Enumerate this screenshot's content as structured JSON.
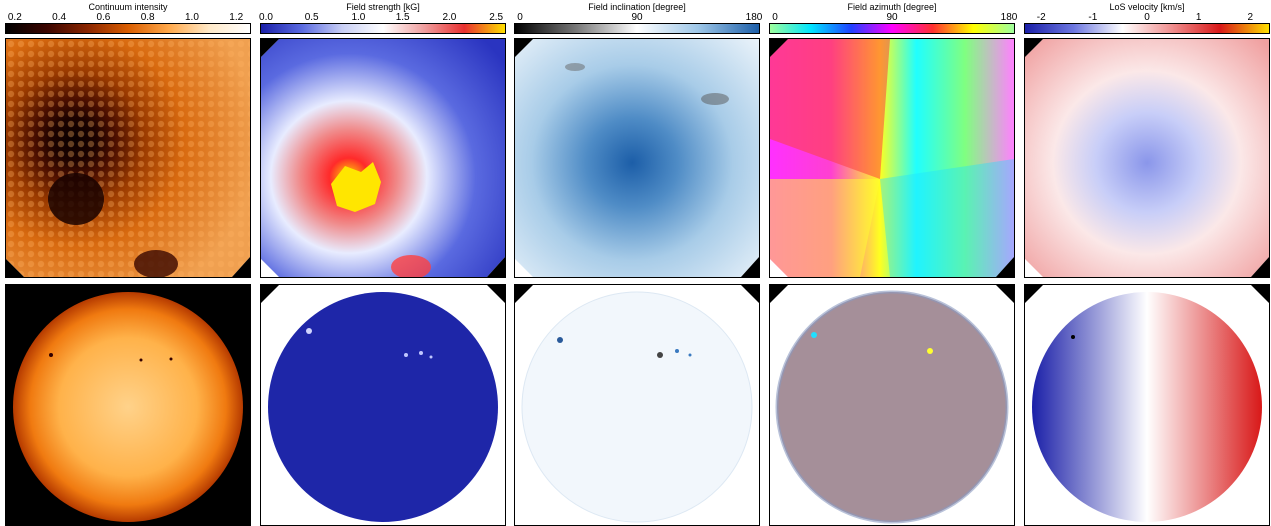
{
  "panels": [
    {
      "title": "Continuum intensity",
      "ticks": [
        "0.2",
        "0.4",
        "0.6",
        "0.8",
        "1.0",
        "1.2"
      ],
      "tick_pos": [
        0.04,
        0.22,
        0.4,
        0.58,
        0.76,
        0.94
      ],
      "colormap": [
        "#000000",
        "#3b0500",
        "#8a2500",
        "#d95d00",
        "#ffa84a",
        "#ffe9c8",
        "#ffffff"
      ],
      "top_image": "sunspot-continuum-map",
      "bottom_image": "full-disk-continuum-map"
    },
    {
      "title": "Field strength [kG]",
      "ticks": [
        "0.0",
        "0.5",
        "1.0",
        "1.5",
        "2.0",
        "2.5"
      ],
      "tick_pos": [
        0.02,
        0.21,
        0.4,
        0.58,
        0.77,
        0.96
      ],
      "colormap": [
        "#1a1fa8",
        "#5a6ae0",
        "#c9cff5",
        "#ffffff",
        "#f0a0a0",
        "#e83030",
        "#ffe000"
      ],
      "top_image": "sunspot-field-strength-map",
      "bottom_image": "full-disk-field-strength-map"
    },
    {
      "title": "Field inclination [degree]",
      "ticks": [
        "0",
        "90",
        "180"
      ],
      "tick_pos": [
        0.0,
        0.5,
        1.0
      ],
      "colormap": [
        "#000000",
        "#777777",
        "#ffffff",
        "#9ec7e8",
        "#1c5ea8"
      ],
      "top_image": "sunspot-inclination-map",
      "bottom_image": "full-disk-inclination-map"
    },
    {
      "title": "Field azimuth [degree]",
      "ticks": [
        "0",
        "90",
        "180"
      ],
      "tick_pos": [
        0.0,
        0.5,
        1.0
      ],
      "colormap": [
        "#9eff9e",
        "#00e5ff",
        "#2040ff",
        "#ff00ff",
        "#ff3030",
        "#ffff00",
        "#9eff9e"
      ],
      "top_image": "sunspot-azimuth-map",
      "bottom_image": "full-disk-azimuth-map"
    },
    {
      "title": "LoS velocity [km/s]",
      "ticks": [
        "-2",
        "-1",
        "0",
        "1",
        "2"
      ],
      "tick_pos": [
        0.07,
        0.28,
        0.5,
        0.71,
        0.92
      ],
      "colormap": [
        "#1a1fa8",
        "#6d77e0",
        "#ffffff",
        "#f09090",
        "#d81818",
        "#ffe000"
      ],
      "top_image": "sunspot-velocity-map",
      "bottom_image": "full-disk-velocity-map"
    }
  ]
}
